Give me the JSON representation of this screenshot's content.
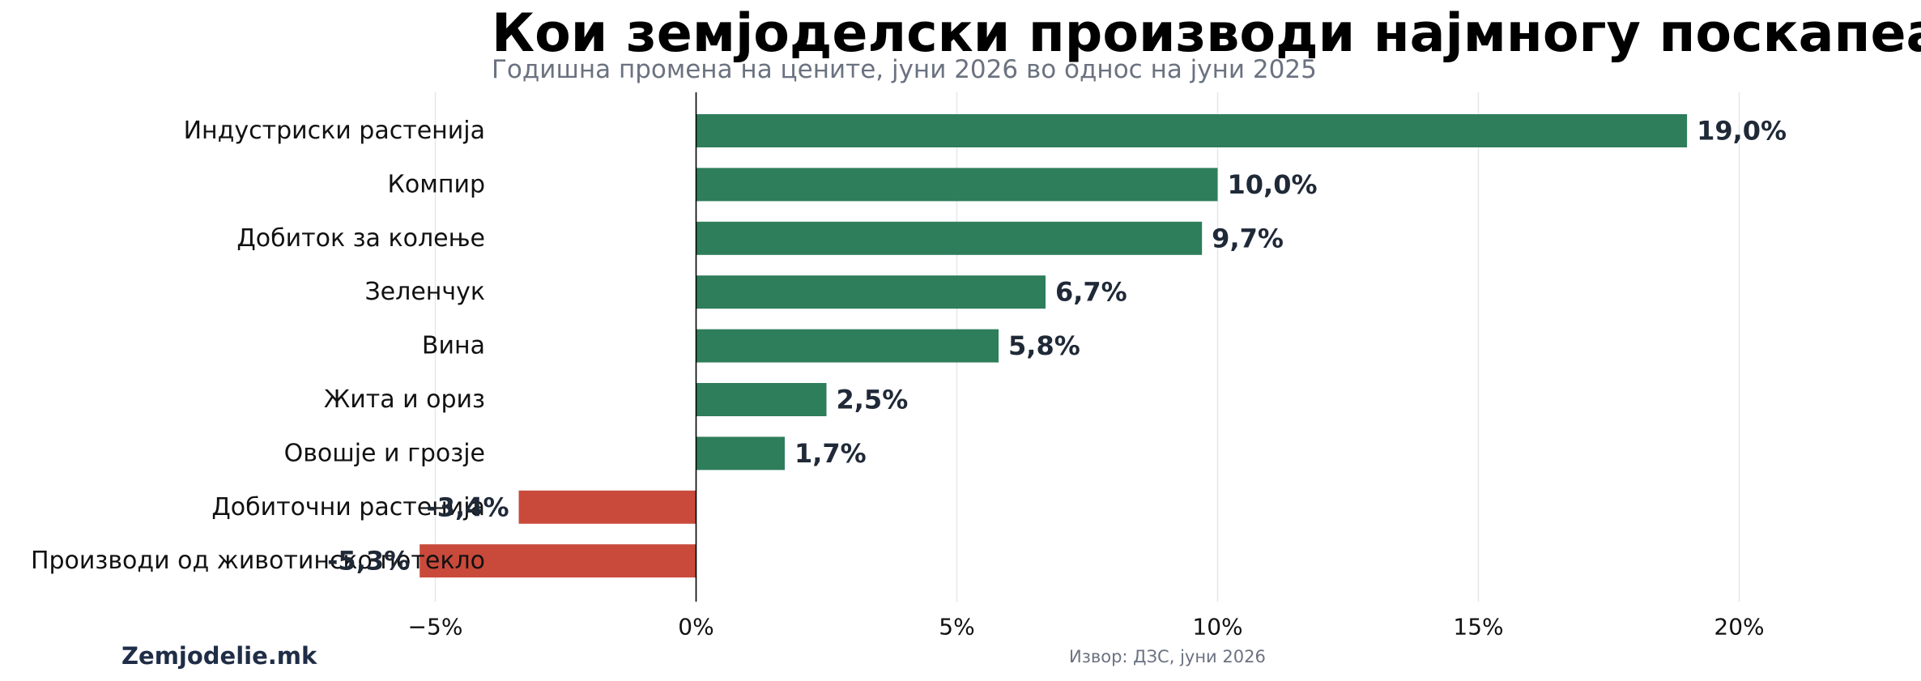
{
  "chart_data": {
    "type": "bar",
    "orientation": "horizontal",
    "title": "Кои земјоделски производи најмногу поскапеа?",
    "subtitle": "Годишна промена на цените, јуни 2026 во однос на јуни 2025",
    "categories": [
      "Индустриски растенија",
      "Компир",
      "Добиток за колење",
      "Зеленчук",
      "Вина",
      "Жита и ориз",
      "Овошје и грозје",
      "Добиточни растенија",
      "Производи од животинско потекло"
    ],
    "values": [
      19.0,
      10.0,
      9.7,
      6.7,
      5.8,
      2.5,
      1.7,
      -3.4,
      -5.3
    ],
    "value_labels": [
      "19,0%",
      "10,0%",
      "9,7%",
      "6,7%",
      "5,8%",
      "2,5%",
      "1,7%",
      "-3,4%",
      "-5,3%"
    ],
    "x_ticks": [
      -5,
      0,
      5,
      10,
      15,
      20
    ],
    "x_tick_labels": [
      "−5%",
      "0%",
      "5%",
      "10%",
      "15%",
      "20%"
    ],
    "xlim": [
      -7.0,
      29.1
    ],
    "grid": "vertical",
    "colors": {
      "positive": "#2e7d5b",
      "negative": "#c94a3b",
      "label": "#1f2937",
      "zero_line": "#000000",
      "grid": "#e5e7eb"
    }
  },
  "branding": "Zemjodelie.mk",
  "source": "Извор: ДЗС, јуни 2026"
}
